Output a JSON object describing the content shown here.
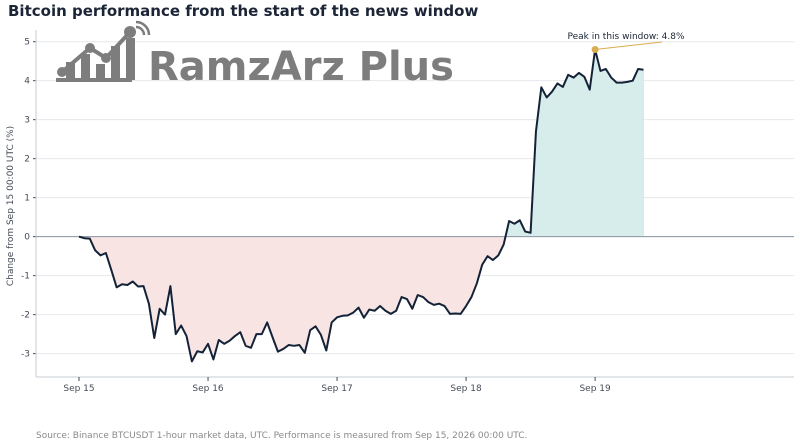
{
  "chart_data": {
    "type": "line",
    "title": "Bitcoin performance from the start of the news window",
    "ylabel": "Change from Sep 15 00:00 UTC (%)",
    "xlabel": "",
    "x_start": "Sep 15 00:00 UTC",
    "x_step_hours": 1,
    "xlim": [
      "2026-09-14T16:00",
      "2026-09-20T13:00"
    ],
    "ylim": [
      -3.6,
      5.3
    ],
    "x_ticks": [
      {
        "label": "Sep 15",
        "datetime": "2026-09-15T00:00"
      },
      {
        "label": "Sep 16",
        "datetime": "2026-09-16T00:00"
      },
      {
        "label": "Sep 17",
        "datetime": "2026-09-17T00:00"
      },
      {
        "label": "Sep 18",
        "datetime": "2026-09-18T00:00"
      },
      {
        "label": "Sep 19",
        "datetime": "2026-09-19T00:00"
      }
    ],
    "y_ticks": [
      -3,
      -2,
      -1,
      0,
      1,
      2,
      3,
      4,
      5
    ],
    "grid": "horizontal",
    "fill": {
      "positive_color": "#d6edec",
      "negative_color": "#f8e5e3"
    },
    "line_color": "#142238",
    "series": [
      {
        "name": "",
        "values": [
          0.0,
          -0.04,
          -0.05,
          -0.35,
          -0.48,
          -0.42,
          -0.85,
          -1.3,
          -1.22,
          -1.24,
          -1.15,
          -1.28,
          -1.27,
          -1.72,
          -2.6,
          -1.85,
          -2.0,
          -1.27,
          -2.5,
          -2.28,
          -2.55,
          -3.2,
          -2.94,
          -2.97,
          -2.75,
          -3.15,
          -2.65,
          -2.75,
          -2.67,
          -2.55,
          -2.45,
          -2.8,
          -2.85,
          -2.5,
          -2.5,
          -2.2,
          -2.58,
          -2.95,
          -2.88,
          -2.78,
          -2.8,
          -2.78,
          -2.98,
          -2.4,
          -2.3,
          -2.52,
          -2.92,
          -2.2,
          -2.07,
          -2.03,
          -2.02,
          -1.95,
          -1.82,
          -2.08,
          -1.87,
          -1.9,
          -1.78,
          -1.9,
          -1.98,
          -1.9,
          -1.55,
          -1.6,
          -1.85,
          -1.5,
          -1.55,
          -1.68,
          -1.75,
          -1.72,
          -1.78,
          -1.98,
          -1.97,
          -1.98,
          -1.78,
          -1.55,
          -1.2,
          -0.72,
          -0.5,
          -0.6,
          -0.48,
          -0.2,
          0.4,
          0.33,
          0.42,
          0.13,
          0.1,
          2.7,
          3.83,
          3.57,
          3.72,
          3.93,
          3.84,
          4.15,
          4.08,
          4.2,
          4.1,
          3.77,
          4.8,
          4.25,
          4.3,
          4.08,
          3.95,
          3.95,
          3.97,
          4.0,
          4.3,
          4.28
        ]
      }
    ],
    "annotations": [
      {
        "text": "Peak in this window: 4.8%",
        "x_index": 96,
        "y": 4.8,
        "marker_color": "#d9ad4f"
      }
    ],
    "source": "Source: Binance BTCUSDT 1-hour market data, UTC. Performance is measured from Sep 15, 2026 00:00 UTC."
  },
  "watermark": {
    "text": "RamzArz Plus",
    "color": "#7d7d7d"
  }
}
